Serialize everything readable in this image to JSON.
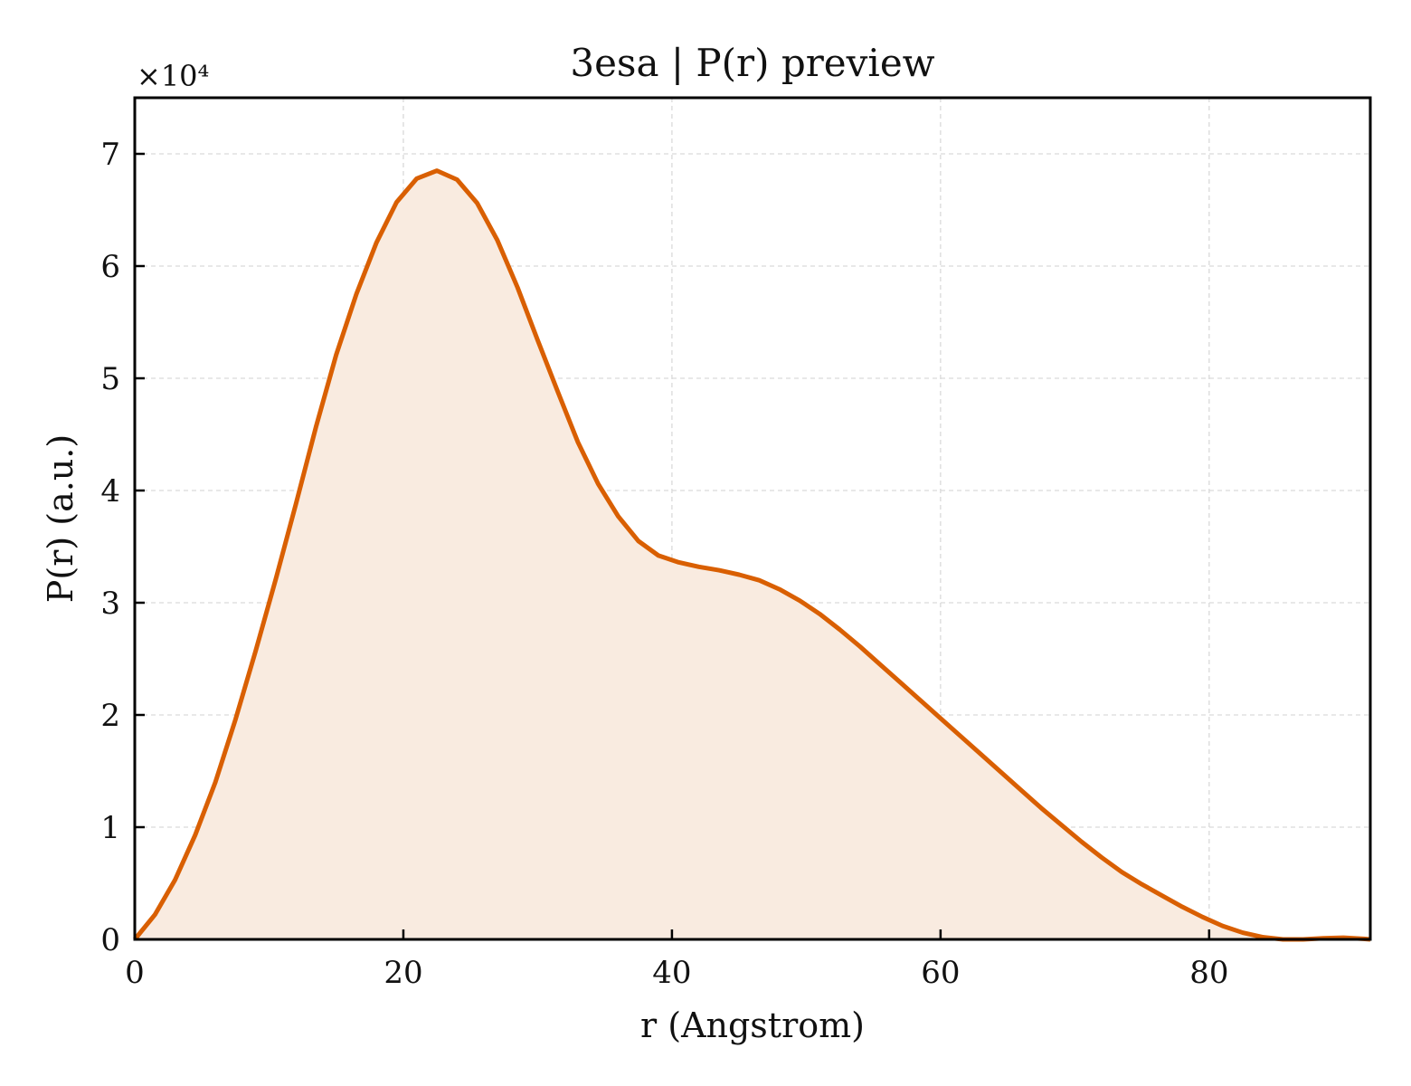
{
  "chart_data": {
    "type": "area",
    "title": "3esa | P(r) preview",
    "xlabel": "r (Angstrom)",
    "ylabel": "P(r) (a.u.)",
    "y_offset_label": "×10⁴",
    "y_scale_factor": 10000,
    "xlim": [
      0,
      92
    ],
    "ylim": [
      0,
      75000
    ],
    "x_ticks": [
      0,
      20,
      40,
      60,
      80
    ],
    "y_ticks": [
      0,
      10000,
      20000,
      30000,
      40000,
      50000,
      60000,
      70000
    ],
    "x_tick_labels": [
      "0",
      "20",
      "40",
      "60",
      "80"
    ],
    "y_tick_labels": [
      "0",
      "1",
      "2",
      "3",
      "4",
      "5",
      "6",
      "7"
    ],
    "grid": true,
    "colors": {
      "line": "#d95f02",
      "fill": "#f9ebe0",
      "grid": "#d9d9d9",
      "axes": "#000000"
    },
    "series": [
      {
        "x": [
          0,
          1.5,
          3,
          4.5,
          6,
          7.5,
          9,
          10.5,
          12,
          13.5,
          15,
          16.5,
          18,
          19.5,
          21,
          22.5,
          24,
          25.5,
          27,
          28.5,
          30,
          31.5,
          33,
          34.5,
          36,
          37.5,
          39,
          40.5,
          42,
          43.5,
          45,
          46.5,
          48,
          49.5,
          51,
          52.5,
          54,
          55.5,
          57,
          58.5,
          60,
          61.5,
          63,
          64.5,
          66,
          67.5,
          69,
          70.5,
          72,
          73.5,
          75,
          76.5,
          78,
          79.5,
          81,
          82.5,
          84,
          85.5,
          87,
          88.5,
          90,
          91.5,
          92
        ],
        "y": [
          0,
          2200,
          5300,
          9300,
          14000,
          19600,
          25700,
          32100,
          38800,
          45700,
          52100,
          57500,
          62100,
          65700,
          67800,
          68500,
          67700,
          65600,
          62300,
          58100,
          53400,
          48800,
          44300,
          40600,
          37700,
          35500,
          34200,
          33600,
          33200,
          32900,
          32500,
          32000,
          31200,
          30200,
          29000,
          27600,
          26100,
          24500,
          22900,
          21300,
          19700,
          18100,
          16500,
          14900,
          13300,
          11700,
          10200,
          8700,
          7300,
          6000,
          4900,
          3900,
          2900,
          2000,
          1200,
          600,
          200,
          0,
          0,
          100,
          150,
          50,
          0
        ]
      }
    ]
  }
}
